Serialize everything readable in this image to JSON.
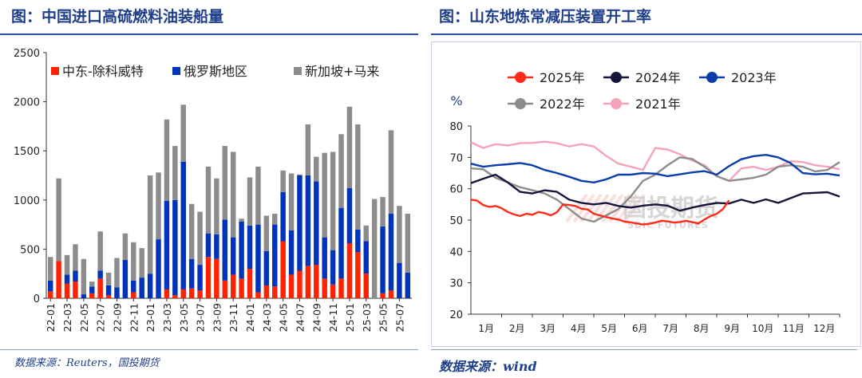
{
  "left": {
    "title": "图：中国进口高硫燃料油装船量",
    "source": "数据来源：Reuters，国投期货",
    "chart_data": {
      "type": "bar",
      "stacked": true,
      "categories": [
        "22-01",
        "22-02",
        "22-03",
        "22-04",
        "22-05",
        "22-06",
        "22-07",
        "22-08",
        "22-09",
        "22-10",
        "22-11",
        "22-12",
        "23-01",
        "23-02",
        "23-03",
        "23-04",
        "23-05",
        "23-06",
        "23-07",
        "23-08",
        "23-09",
        "23-10",
        "23-11",
        "23-12",
        "24-01",
        "24-02",
        "24-03",
        "24-04",
        "24-05",
        "24-06",
        "24-07",
        "24-08",
        "24-09",
        "24-10",
        "24-11",
        "24-12",
        "25-01",
        "25-02",
        "25-03",
        "25-04",
        "25-05",
        "25-06",
        "25-07",
        "25-08"
      ],
      "tick_labels": [
        "22-01",
        "22-03",
        "22-05",
        "22-07",
        "22-09",
        "22-11",
        "23-01",
        "23-03",
        "23-05",
        "23-07",
        "23-09",
        "23-11",
        "24-01",
        "24-03",
        "24-05",
        "24-07",
        "24-09",
        "24-11",
        "25-01",
        "25-03",
        "25-05",
        "25-07"
      ],
      "series": [
        {
          "name": "中东-除科威特",
          "color": "#ff2200",
          "values": [
            70,
            380,
            150,
            170,
            0,
            50,
            200,
            30,
            0,
            0,
            60,
            0,
            0,
            0,
            90,
            30,
            90,
            100,
            80,
            420,
            400,
            180,
            240,
            200,
            300,
            60,
            130,
            120,
            580,
            240,
            280,
            330,
            340,
            200,
            140,
            200,
            560,
            470,
            250,
            0,
            50,
            80,
            0,
            0
          ]
        },
        {
          "name": "俄罗斯地区",
          "color": "#0033bb",
          "values": [
            110,
            0,
            90,
            110,
            40,
            70,
            80,
            100,
            110,
            390,
            120,
            210,
            250,
            600,
            900,
            970,
            1300,
            300,
            260,
            240,
            250,
            620,
            380,
            580,
            440,
            690,
            350,
            630,
            500,
            450,
            970,
            920,
            850,
            420,
            350,
            720,
            560,
            230,
            330,
            0,
            680,
            780,
            360,
            260
          ]
        },
        {
          "name": "新加坡+马来",
          "color": "#8c8c8c",
          "values": [
            240,
            840,
            200,
            270,
            360,
            50,
            400,
            130,
            300,
            270,
            390,
            300,
            1000,
            680,
            830,
            550,
            580,
            560,
            540,
            680,
            570,
            750,
            870,
            30,
            490,
            590,
            360,
            110,
            220,
            580,
            10,
            520,
            250,
            860,
            1000,
            750,
            830,
            1070,
            160,
            1010,
            300,
            850,
            580,
            600
          ]
        }
      ],
      "ylim": [
        0,
        2500
      ],
      "yticks": [
        0,
        500,
        1000,
        1500,
        2000,
        2500
      ],
      "legend_position": "top"
    }
  },
  "right": {
    "title": "图：山东地炼常减压装置开工率",
    "source": "数据来源：wind",
    "watermark": "国投期货",
    "watermark_sub": "SDIC FUTURES",
    "chart_data": {
      "type": "line",
      "ylabel": "%",
      "ylim": [
        20,
        80
      ],
      "yticks": [
        20,
        30,
        40,
        50,
        60,
        70,
        80
      ],
      "x_range": [
        0,
        12
      ],
      "xticks": [
        "1月",
        "2月",
        "3月",
        "4月",
        "5月",
        "6月",
        "7月",
        "8月",
        "9月",
        "10月",
        "11月",
        "12月"
      ],
      "series": [
        {
          "name": "2025年",
          "color": "#ff2a1a",
          "x": [
            0,
            0.2,
            0.4,
            0.6,
            0.8,
            1.0,
            1.2,
            1.4,
            1.6,
            1.8,
            2.0,
            2.2,
            2.4,
            2.6,
            2.8,
            3.0,
            3.2,
            3.4,
            3.6,
            3.8,
            4.0,
            4.2,
            4.4,
            4.6,
            4.8,
            5.0,
            5.2,
            5.4,
            5.6,
            5.8,
            6.0,
            6.2,
            6.4,
            6.6,
            6.8,
            7.0,
            7.2,
            7.4,
            7.6,
            7.8,
            8.0,
            8.2,
            8.4
          ],
          "y": [
            56.5,
            56.2,
            54.8,
            54.2,
            54.5,
            53.8,
            52.6,
            51.8,
            51.3,
            52.0,
            51.7,
            52.6,
            52.2,
            51.5,
            52.5,
            55.0,
            54.8,
            54.5,
            53.6,
            53.4,
            52.0,
            51.5,
            51.0,
            50.5,
            50.2,
            49.5,
            49.3,
            48.9,
            48.6,
            48.8,
            49.2,
            49.8,
            49.6,
            49.2,
            49.4,
            49.8,
            49.4,
            48.9,
            50.2,
            51.3,
            52.0,
            53.5,
            56.3
          ]
        },
        {
          "name": "2024年",
          "color": "#15153a",
          "x": [
            0,
            0.4,
            0.8,
            1.2,
            1.6,
            2.0,
            2.4,
            2.8,
            3.2,
            3.6,
            4.0,
            4.4,
            4.8,
            5.2,
            5.6,
            6.0,
            6.4,
            6.8,
            7.2,
            7.6,
            8.0,
            8.4,
            8.8,
            9.2,
            9.6,
            10.0,
            10.4,
            10.8,
            11.2,
            11.6,
            12.0
          ],
          "y": [
            61.8,
            63.2,
            64.5,
            62.0,
            59.0,
            58.5,
            59.5,
            59.0,
            56.5,
            55.5,
            55.0,
            55.5,
            54.5,
            54.0,
            54.6,
            55.0,
            54.6,
            53.0,
            54.0,
            54.8,
            55.5,
            55.3,
            56.5,
            55.5,
            56.6,
            55.5,
            57.0,
            58.5,
            58.7,
            58.9,
            57.5
          ]
        },
        {
          "name": "2023年",
          "color": "#0b3ea8",
          "x": [
            0,
            0.4,
            0.8,
            1.2,
            1.6,
            2.0,
            2.4,
            2.8,
            3.2,
            3.6,
            4.0,
            4.4,
            4.8,
            5.2,
            5.6,
            6.0,
            6.4,
            6.8,
            7.2,
            7.6,
            8.0,
            8.4,
            8.8,
            9.2,
            9.6,
            10.0,
            10.4,
            10.8,
            11.2,
            11.6,
            12.0
          ],
          "y": [
            68.0,
            67.0,
            67.5,
            67.8,
            68.2,
            67.5,
            66.0,
            65.0,
            63.8,
            62.5,
            62.0,
            63.0,
            64.5,
            64.5,
            65.0,
            64.8,
            64.0,
            64.6,
            65.2,
            65.6,
            64.5,
            67.2,
            69.4,
            70.4,
            70.8,
            70.0,
            68.2,
            65.0,
            64.6,
            64.8,
            64.2
          ]
        },
        {
          "name": "2022年",
          "color": "#8c8c8c",
          "x": [
            0,
            0.4,
            0.8,
            1.2,
            1.6,
            2.0,
            2.4,
            2.8,
            3.2,
            3.6,
            4.0,
            4.4,
            4.8,
            5.2,
            5.6,
            6.0,
            6.4,
            6.8,
            7.2,
            7.6,
            8.0,
            8.4,
            8.8,
            9.2,
            9.6,
            10.0,
            10.4,
            10.8,
            11.2,
            11.6,
            12.0
          ],
          "y": [
            66.5,
            66.2,
            63.5,
            62.0,
            60.5,
            59.5,
            58.5,
            56.5,
            53.5,
            50.5,
            49.5,
            51.5,
            53.5,
            57.5,
            62.5,
            64.5,
            67.5,
            70.0,
            69.5,
            67.0,
            64.0,
            62.5,
            63.0,
            63.5,
            64.5,
            67.0,
            67.5,
            67.0,
            65.5,
            66.0,
            68.5
          ]
        },
        {
          "name": "2021年",
          "color": "#f5a3b7",
          "x": [
            0,
            0.4,
            0.8,
            1.2,
            1.6,
            2.0,
            2.4,
            2.8,
            3.2,
            3.6,
            4.0,
            4.4,
            4.8,
            5.2,
            5.6,
            6.0,
            6.4,
            6.8,
            7.2,
            7.6,
            8.0,
            8.4,
            8.8,
            9.2,
            9.6,
            10.0,
            10.4,
            10.8,
            11.2,
            11.6,
            12.0
          ],
          "y": [
            74.8,
            73.0,
            74.2,
            73.8,
            74.5,
            74.6,
            75.0,
            74.5,
            73.5,
            74.2,
            73.5,
            70.5,
            68.0,
            67.0,
            66.0,
            73.0,
            72.5,
            71.0,
            69.0,
            67.5,
            64.0,
            62.5,
            66.5,
            67.0,
            66.0,
            67.0,
            68.8,
            68.5,
            67.5,
            67.0,
            66.2
          ]
        }
      ],
      "legend_position": "top"
    }
  }
}
